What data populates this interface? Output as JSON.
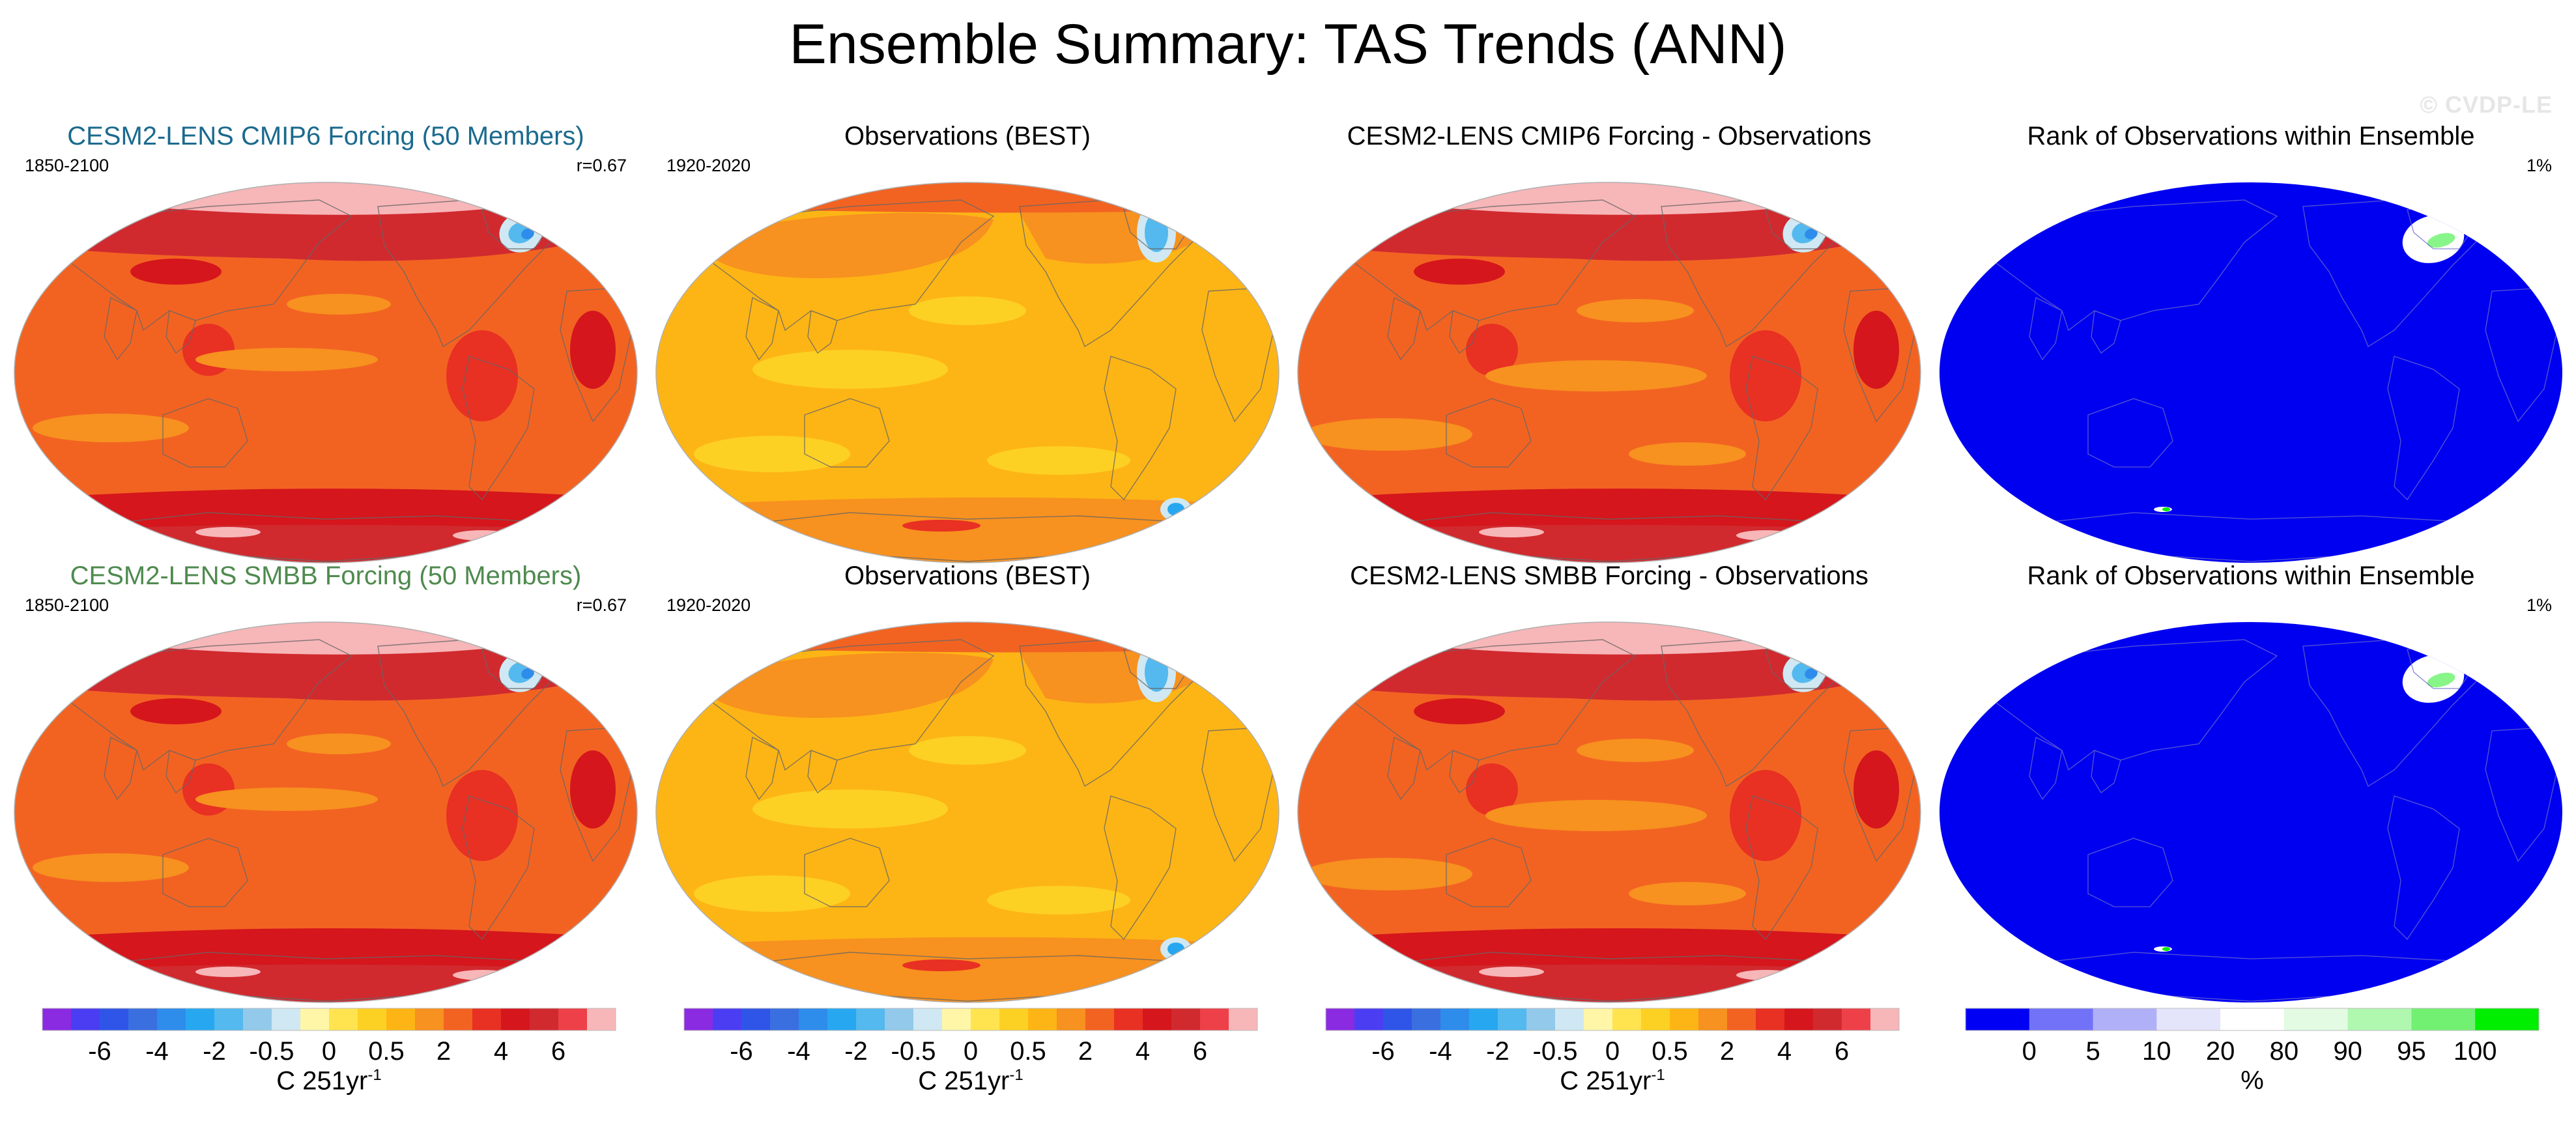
{
  "title": "Ensemble Summary: TAS Trends (ANN)",
  "watermark": "© CVDP-LE",
  "colors": {
    "pink": "#f7b6b8",
    "darkred": "#d02326",
    "red": "#e83023",
    "orangered": "#f26322",
    "orange": "#f7911f",
    "amber": "#fdb515",
    "yellow": "#fdd024",
    "blue_ocean": "#0000f0",
    "coast": "#666666"
  },
  "trend_colorbar": {
    "colors": [
      "#8a2be2",
      "#4b3df2",
      "#2f55e8",
      "#3a6fe0",
      "#2e8ceb",
      "#27a7f0",
      "#53b9ee",
      "#93c9ea",
      "#cfe8f3",
      "#fff6a8",
      "#ffe44f",
      "#fdd024",
      "#fdb515",
      "#f7911f",
      "#f26322",
      "#e83023",
      "#d5161c",
      "#d02a2f",
      "#ee4048",
      "#f7b6b8"
    ],
    "tick_labels": [
      "-6",
      "-4",
      "-2",
      "-0.5",
      "0",
      "0.5",
      "2",
      "4",
      "6"
    ],
    "unit": "C 251yr",
    "unit_exp": "-1"
  },
  "rank_colorbar": {
    "colors": [
      "#0000f5",
      "#7272f8",
      "#b0b0f9",
      "#e4e4fb",
      "#ffffff",
      "#e2fbe2",
      "#b0f8b0",
      "#72f072",
      "#00ee00"
    ],
    "tick_labels": [
      "0",
      "5",
      "10",
      "20",
      "80",
      "90",
      "95",
      "100"
    ],
    "unit": "%"
  },
  "panels": [
    {
      "title": "CESM2-LENS CMIP6 Forcing (50 Members)",
      "title_color": "#1b6a8e",
      "left": "1850-2100",
      "right": "r=0.67",
      "kind": "model"
    },
    {
      "title": "Observations (BEST)",
      "title_color": "#000000",
      "left": "1920-2020",
      "right": "",
      "kind": "obs"
    },
    {
      "title": "CESM2-LENS CMIP6 Forcing - Observations",
      "title_color": "#000000",
      "left": "",
      "right": "",
      "kind": "diff"
    },
    {
      "title": "Rank of Observations within Ensemble",
      "title_color": "#000000",
      "left": "",
      "right": "1%",
      "kind": "rank"
    },
    {
      "title": "CESM2-LENS SMBB Forcing (50 Members)",
      "title_color": "#4f8a4f",
      "left": "1850-2100",
      "right": "r=0.67",
      "kind": "model"
    },
    {
      "title": "Observations (BEST)",
      "title_color": "#000000",
      "left": "1920-2020",
      "right": "",
      "kind": "obs"
    },
    {
      "title": "CESM2-LENS SMBB Forcing - Observations",
      "title_color": "#000000",
      "left": "",
      "right": "",
      "kind": "diff"
    },
    {
      "title": "Rank of Observations within Ensemble",
      "title_color": "#000000",
      "left": "",
      "right": "1%",
      "kind": "rank"
    }
  ],
  "chart_data": [
    {
      "type": "heatmap",
      "title": "CESM2-LENS CMIP6 Forcing (50 Members)",
      "period": "1850-2100",
      "pattern_correlation": "r=0.67",
      "variable": "TAS trend",
      "units": "C 251yr-1",
      "dominant_levels": [
        "2",
        "4",
        "6"
      ]
    },
    {
      "type": "heatmap",
      "title": "Observations (BEST)",
      "period": "1920-2020",
      "variable": "TAS trend",
      "units": "C 251yr-1",
      "dominant_levels": [
        "0.5",
        "2"
      ]
    },
    {
      "type": "heatmap",
      "title": "CESM2-LENS CMIP6 Forcing - Observations",
      "variable": "TAS trend difference",
      "units": "C 251yr-1",
      "dominant_levels": [
        "2",
        "4"
      ]
    },
    {
      "type": "heatmap",
      "title": "Rank of Observations within Ensemble",
      "variable": "rank",
      "units": "%",
      "area_fraction_label": "1%",
      "dominant_levels": [
        "0"
      ]
    },
    {
      "type": "heatmap",
      "title": "CESM2-LENS SMBB Forcing (50 Members)",
      "period": "1850-2100",
      "pattern_correlation": "r=0.67",
      "variable": "TAS trend",
      "units": "C 251yr-1",
      "dominant_levels": [
        "2",
        "4",
        "6"
      ]
    },
    {
      "type": "heatmap",
      "title": "Observations (BEST)",
      "period": "1920-2020",
      "variable": "TAS trend",
      "units": "C 251yr-1",
      "dominant_levels": [
        "0.5",
        "2"
      ]
    },
    {
      "type": "heatmap",
      "title": "CESM2-LENS SMBB Forcing - Observations",
      "variable": "TAS trend difference",
      "units": "C 251yr-1",
      "dominant_levels": [
        "2",
        "4"
      ]
    },
    {
      "type": "heatmap",
      "title": "Rank of Observations within Ensemble",
      "variable": "rank",
      "units": "%",
      "area_fraction_label": "1%",
      "dominant_levels": [
        "0"
      ]
    }
  ]
}
